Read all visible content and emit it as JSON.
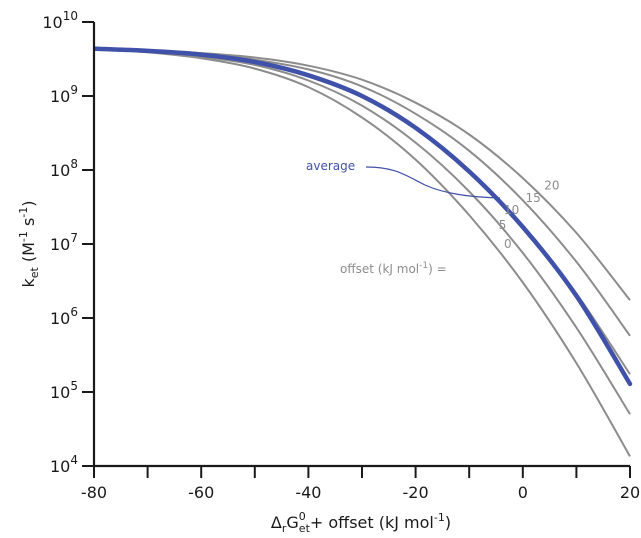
{
  "colors": {
    "curve": "#8c8c8c",
    "average": "#3f51a8",
    "axis": "#1a1a1a"
  },
  "chart_data": {
    "type": "line",
    "x": [
      -80,
      -70,
      -60,
      -50,
      -40,
      -30,
      -20,
      -10,
      0,
      10,
      20
    ],
    "xlim": [
      -80,
      20
    ],
    "ylim_log10": [
      4,
      10
    ],
    "log_y": true,
    "grid": false,
    "xticks": [
      "-80",
      "-60",
      "-40",
      "-20",
      "0",
      "20"
    ],
    "yticks": [
      {
        "base": "10",
        "exp": "10"
      },
      {
        "base": "10",
        "exp": "9"
      },
      {
        "base": "10",
        "exp": "8"
      },
      {
        "base": "10",
        "exp": "7"
      },
      {
        "base": "10",
        "exp": "6"
      },
      {
        "base": "10",
        "exp": "5"
      },
      {
        "base": "10",
        "exp": "4"
      }
    ],
    "xlabel": {
      "pre": "Δ",
      "sub1": "r",
      "main": "G",
      "sup": "0",
      "sub2": "et",
      "post": "+ offset (kJ mol",
      "sup2": "-1",
      "close": ")"
    },
    "ylabel": {
      "main": "k",
      "sub": "et",
      "rest": " (M",
      "sup1": "-1",
      "mid": " s",
      "sup2": "-1",
      "close": ")"
    },
    "offset_prefix": "offset (kJ mol",
    "offset_prefix_sup": "-1",
    "offset_prefix_end": ") =",
    "series": [
      {
        "name": "0",
        "values": [
          9.64,
          9.59,
          9.51,
          9.37,
          9.12,
          8.71,
          8.14,
          7.39,
          6.48,
          5.39,
          4.13
        ]
      },
      {
        "name": "5",
        "values": [
          9.64,
          9.6,
          9.53,
          9.42,
          9.21,
          8.87,
          8.37,
          7.71,
          6.88,
          5.87,
          4.7
        ]
      },
      {
        "name": "10",
        "values": [
          9.64,
          9.61,
          9.55,
          9.46,
          9.29,
          9.01,
          8.58,
          8.0,
          7.25,
          6.33,
          5.24
        ]
      },
      {
        "name": "15",
        "values": [
          9.64,
          9.62,
          9.57,
          9.49,
          9.36,
          9.13,
          8.76,
          8.26,
          7.59,
          6.76,
          5.76
        ]
      },
      {
        "name": "20",
        "values": [
          9.64,
          9.62,
          9.58,
          9.52,
          9.41,
          9.22,
          8.91,
          8.48,
          7.89,
          7.15,
          6.24
        ]
      },
      {
        "name": "average",
        "values": [
          9.64,
          9.61,
          9.56,
          9.46,
          9.28,
          9.0,
          8.57,
          7.98,
          7.23,
          6.3,
          5.11
        ]
      }
    ],
    "average_label": "average"
  }
}
